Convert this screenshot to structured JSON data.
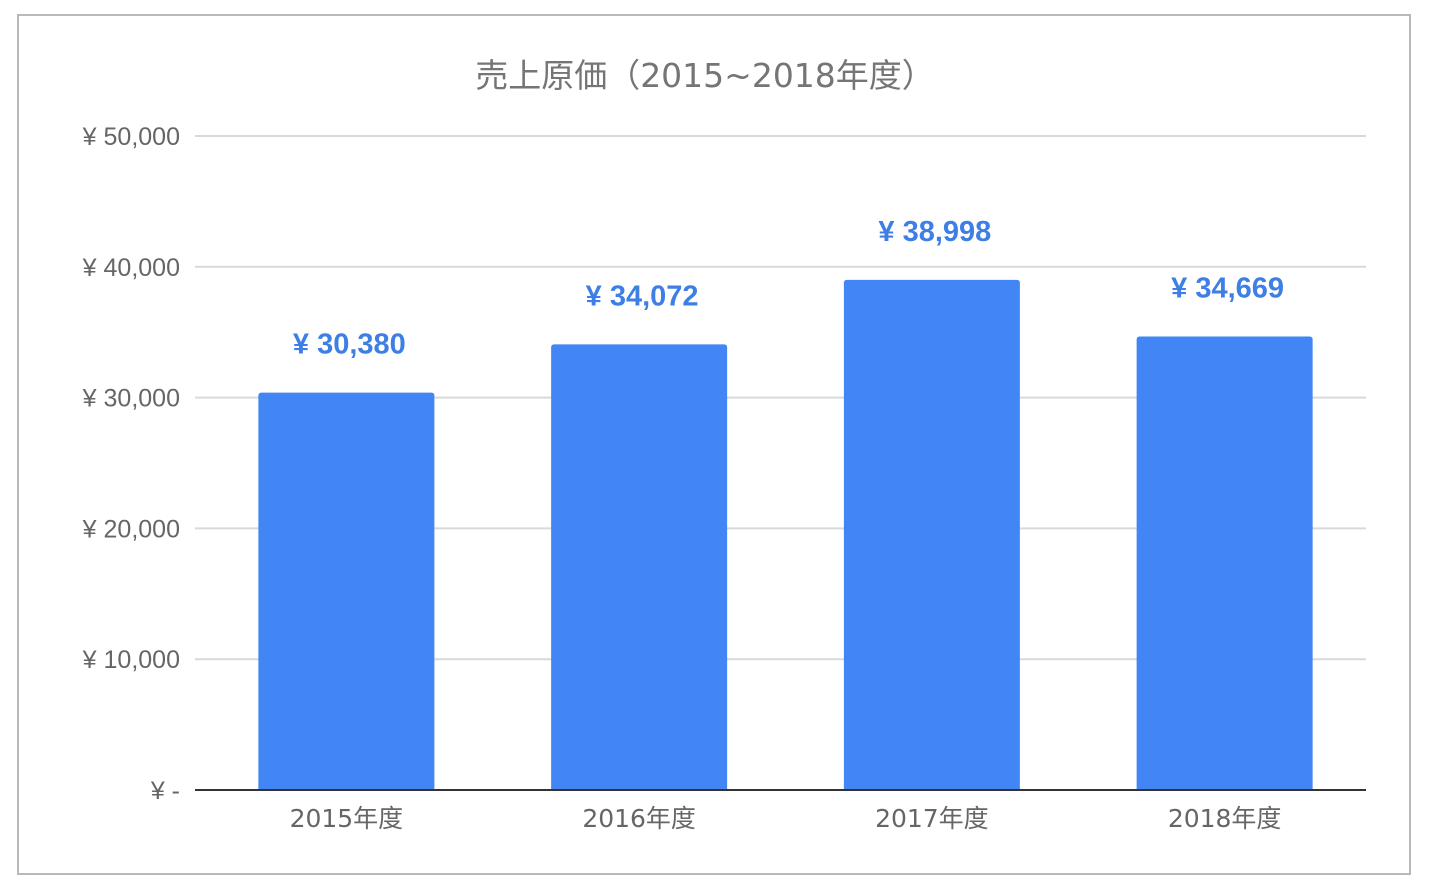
{
  "colors": {
    "bar": "#4285f4",
    "label": "#3e7fe6",
    "grid": "#d9d9d9",
    "axis": "#333333",
    "frame": "#b9b9b9"
  },
  "chart_data": {
    "type": "bar",
    "title": "売上原価（2015~2018年度）",
    "xlabel": "",
    "ylabel": "",
    "categories": [
      "2015年度",
      "2016年度",
      "2017年度",
      "2018年度"
    ],
    "values": [
      30380,
      34072,
      38998,
      34669
    ],
    "value_labels": [
      "¥ 30,380",
      "¥ 34,072",
      "¥ 38,998",
      "¥ 34,669"
    ],
    "ylim": [
      0,
      50000
    ],
    "yticks": [
      0,
      10000,
      20000,
      30000,
      40000,
      50000
    ],
    "ytick_labels": [
      "¥ -",
      "¥ 10,000",
      "¥ 20,000",
      "¥ 30,000",
      "¥ 40,000",
      "¥ 50,000"
    ],
    "grid": true,
    "legend": "none"
  }
}
